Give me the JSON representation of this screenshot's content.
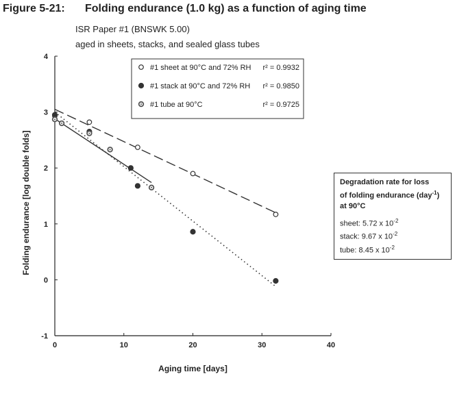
{
  "figure": {
    "number": "Figure 5-21:",
    "title": "Folding endurance (1.0 kg) as a function of aging time",
    "subtitle1": "ISR Paper #1 (BNSWK 5.00)",
    "subtitle2": "aged in sheets, stacks, and sealed glass tubes"
  },
  "legend": [
    {
      "label": "#1 sheet at 90°C and 72% RH",
      "r2": "r² = 0.9932",
      "marker": "open-circle"
    },
    {
      "label": "#1 stack at 90°C and 72% RH",
      "r2": "r² = 0.9850",
      "marker": "filled-circle"
    },
    {
      "label": "#1 tube at 90°C",
      "r2": "r² = 0.9725",
      "marker": "dotted-circle"
    }
  ],
  "rate_box": {
    "heading_line1": "Degradation rate for loss",
    "heading_line2_pre": "of folding endurance (day",
    "heading_line2_sup": "-1",
    "heading_line2_post": ")",
    "heading_line3": "at 90°C",
    "rows": [
      {
        "label": "sheet:",
        "mantissa": "5.72 x 10",
        "exp": "-2"
      },
      {
        "label": "stack:",
        "mantissa": "9.67 x 10",
        "exp": "-2"
      },
      {
        "label": "tube:",
        "mantissa": "8.45 x 10",
        "exp": "-2"
      }
    ]
  },
  "chart_data": {
    "type": "scatter",
    "xlabel": "Aging time [days]",
    "ylabel": "Folding endurance [log double folds]",
    "xlim": [
      0,
      40
    ],
    "ylim": [
      -1,
      4
    ],
    "xticks": [
      0,
      10,
      20,
      30,
      40
    ],
    "yticks": [
      -1,
      0,
      1,
      2,
      3,
      4
    ],
    "legend_position": "top-right",
    "series": [
      {
        "name": "#1 sheet at 90°C and 72% RH",
        "marker": "open-circle",
        "line_style": "dashed",
        "points": [
          [
            0,
            2.93
          ],
          [
            5,
            2.82
          ],
          [
            12,
            2.37
          ],
          [
            20,
            1.9
          ],
          [
            32,
            1.17
          ]
        ],
        "fit": [
          [
            0,
            3.05
          ],
          [
            32,
            1.2
          ]
        ]
      },
      {
        "name": "#1 stack at 90°C and 72% RH",
        "marker": "filled-circle",
        "line_style": "solid",
        "points": [
          [
            0,
            2.95
          ],
          [
            5,
            2.65
          ],
          [
            11,
            2.0
          ],
          [
            12,
            1.68
          ],
          [
            20,
            0.86
          ],
          [
            32,
            -0.02
          ]
        ],
        "fit": [
          [
            0,
            2.88
          ],
          [
            14,
            1.74
          ]
        ]
      },
      {
        "name": "#1 tube at 90°C",
        "marker": "dotted-circle",
        "line_style": "dotted",
        "points": [
          [
            0,
            2.87
          ],
          [
            1,
            2.8
          ],
          [
            5,
            2.62
          ],
          [
            8,
            2.33
          ],
          [
            14,
            1.65
          ]
        ],
        "fit": [
          [
            0,
            3.0
          ],
          [
            32,
            -0.12
          ]
        ]
      }
    ]
  }
}
